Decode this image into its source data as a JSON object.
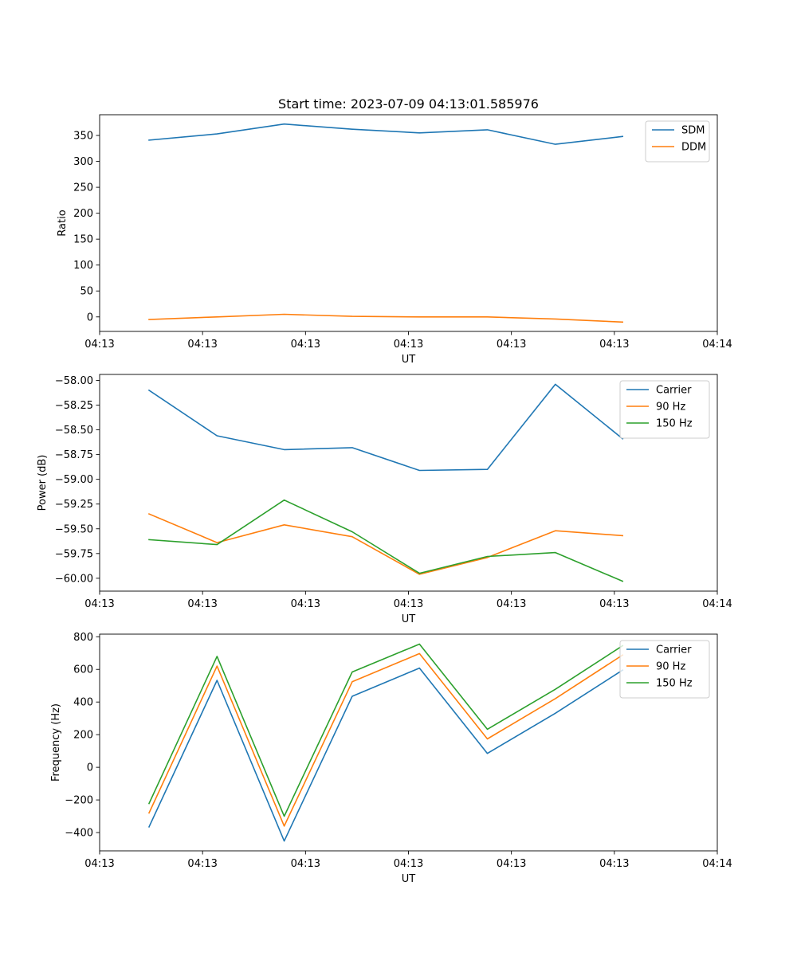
{
  "figure": {
    "title": "Start time: 2023-07-09 04:13:01.585976"
  },
  "chart_data": [
    {
      "type": "line",
      "xlabel": "UT",
      "ylabel": "Ratio",
      "xlim": [
        0,
        9
      ],
      "ylim": [
        -28,
        390
      ],
      "xticks": [
        {
          "x": 0,
          "label": "04:13"
        },
        {
          "x": 1.5,
          "label": "04:13"
        },
        {
          "x": 3,
          "label": "04:13"
        },
        {
          "x": 4.5,
          "label": "04:13"
        },
        {
          "x": 6,
          "label": "04:13"
        },
        {
          "x": 7.5,
          "label": "04:13"
        },
        {
          "x": 9,
          "label": "04:14"
        }
      ],
      "yticks": [
        {
          "y": 0,
          "label": "0"
        },
        {
          "y": 50,
          "label": "50"
        },
        {
          "y": 100,
          "label": "100"
        },
        {
          "y": 150,
          "label": "150"
        },
        {
          "y": 200,
          "label": "200"
        },
        {
          "y": 250,
          "label": "250"
        },
        {
          "y": 300,
          "label": "300"
        },
        {
          "y": 350,
          "label": "350"
        }
      ],
      "legend": "top-right",
      "x": [
        0.72,
        1.71,
        2.69,
        3.68,
        4.66,
        5.65,
        6.64,
        7.62
      ],
      "series": [
        {
          "name": "SDM",
          "color": "#1f77b4",
          "values": [
            341,
            353,
            372,
            362,
            355,
            361,
            333,
            348
          ]
        },
        {
          "name": "DDM",
          "color": "#ff7f0e",
          "values": [
            -5,
            0,
            5,
            1,
            0,
            0,
            -4,
            -10
          ]
        }
      ]
    },
    {
      "type": "line",
      "xlabel": "UT",
      "ylabel": "Power (dB)",
      "xlim": [
        0,
        9
      ],
      "ylim": [
        -60.13,
        -57.94
      ],
      "xticks": [
        {
          "x": 0,
          "label": "04:13"
        },
        {
          "x": 1.5,
          "label": "04:13"
        },
        {
          "x": 3,
          "label": "04:13"
        },
        {
          "x": 4.5,
          "label": "04:13"
        },
        {
          "x": 6,
          "label": "04:13"
        },
        {
          "x": 7.5,
          "label": "04:13"
        },
        {
          "x": 9,
          "label": "04:14"
        }
      ],
      "yticks": [
        {
          "y": -60.0,
          "label": "−60.00"
        },
        {
          "y": -59.75,
          "label": "−59.75"
        },
        {
          "y": -59.5,
          "label": "−59.50"
        },
        {
          "y": -59.25,
          "label": "−59.25"
        },
        {
          "y": -59.0,
          "label": "−59.00"
        },
        {
          "y": -58.75,
          "label": "−58.75"
        },
        {
          "y": -58.5,
          "label": "−58.50"
        },
        {
          "y": -58.25,
          "label": "−58.25"
        },
        {
          "y": -58.0,
          "label": "−58.00"
        }
      ],
      "legend": "top-right",
      "x": [
        0.72,
        1.71,
        2.69,
        3.68,
        4.66,
        5.65,
        6.64,
        7.62
      ],
      "series": [
        {
          "name": "Carrier",
          "color": "#1f77b4",
          "values": [
            -58.1,
            -58.56,
            -58.7,
            -58.68,
            -58.91,
            -58.9,
            -58.04,
            -58.59
          ]
        },
        {
          "name": "90 Hz",
          "color": "#ff7f0e",
          "values": [
            -59.35,
            -59.64,
            -59.46,
            -59.58,
            -59.96,
            -59.79,
            -59.52,
            -59.57
          ]
        },
        {
          "name": "150 Hz",
          "color": "#2ca02c",
          "values": [
            -59.61,
            -59.66,
            -59.21,
            -59.53,
            -59.95,
            -59.78,
            -59.74,
            -60.03
          ]
        }
      ]
    },
    {
      "type": "line",
      "xlabel": "UT",
      "ylabel": "Frequency (Hz)",
      "xlim": [
        0,
        9
      ],
      "ylim": [
        -512,
        816
      ],
      "xticks": [
        {
          "x": 0,
          "label": "04:13"
        },
        {
          "x": 1.5,
          "label": "04:13"
        },
        {
          "x": 3,
          "label": "04:13"
        },
        {
          "x": 4.5,
          "label": "04:13"
        },
        {
          "x": 6,
          "label": "04:13"
        },
        {
          "x": 7.5,
          "label": "04:13"
        },
        {
          "x": 9,
          "label": "04:14"
        }
      ],
      "yticks": [
        {
          "y": -400,
          "label": "−400"
        },
        {
          "y": -200,
          "label": "−200"
        },
        {
          "y": 0,
          "label": "0"
        },
        {
          "y": 200,
          "label": "200"
        },
        {
          "y": 400,
          "label": "400"
        },
        {
          "y": 600,
          "label": "600"
        },
        {
          "y": 800,
          "label": "800"
        }
      ],
      "legend": "top-right",
      "x": [
        0.72,
        1.71,
        2.69,
        3.68,
        4.66,
        5.65,
        6.64,
        7.62
      ],
      "series": [
        {
          "name": "Carrier",
          "color": "#1f77b4",
          "values": [
            -365,
            533,
            -452,
            435,
            608,
            85,
            331,
            596
          ]
        },
        {
          "name": "90 Hz",
          "color": "#ff7f0e",
          "values": [
            -280,
            620,
            -360,
            524,
            697,
            174,
            421,
            688
          ]
        },
        {
          "name": "150 Hz",
          "color": "#2ca02c",
          "values": [
            -222,
            680,
            -300,
            584,
            755,
            233,
            478,
            745
          ]
        }
      ]
    }
  ]
}
